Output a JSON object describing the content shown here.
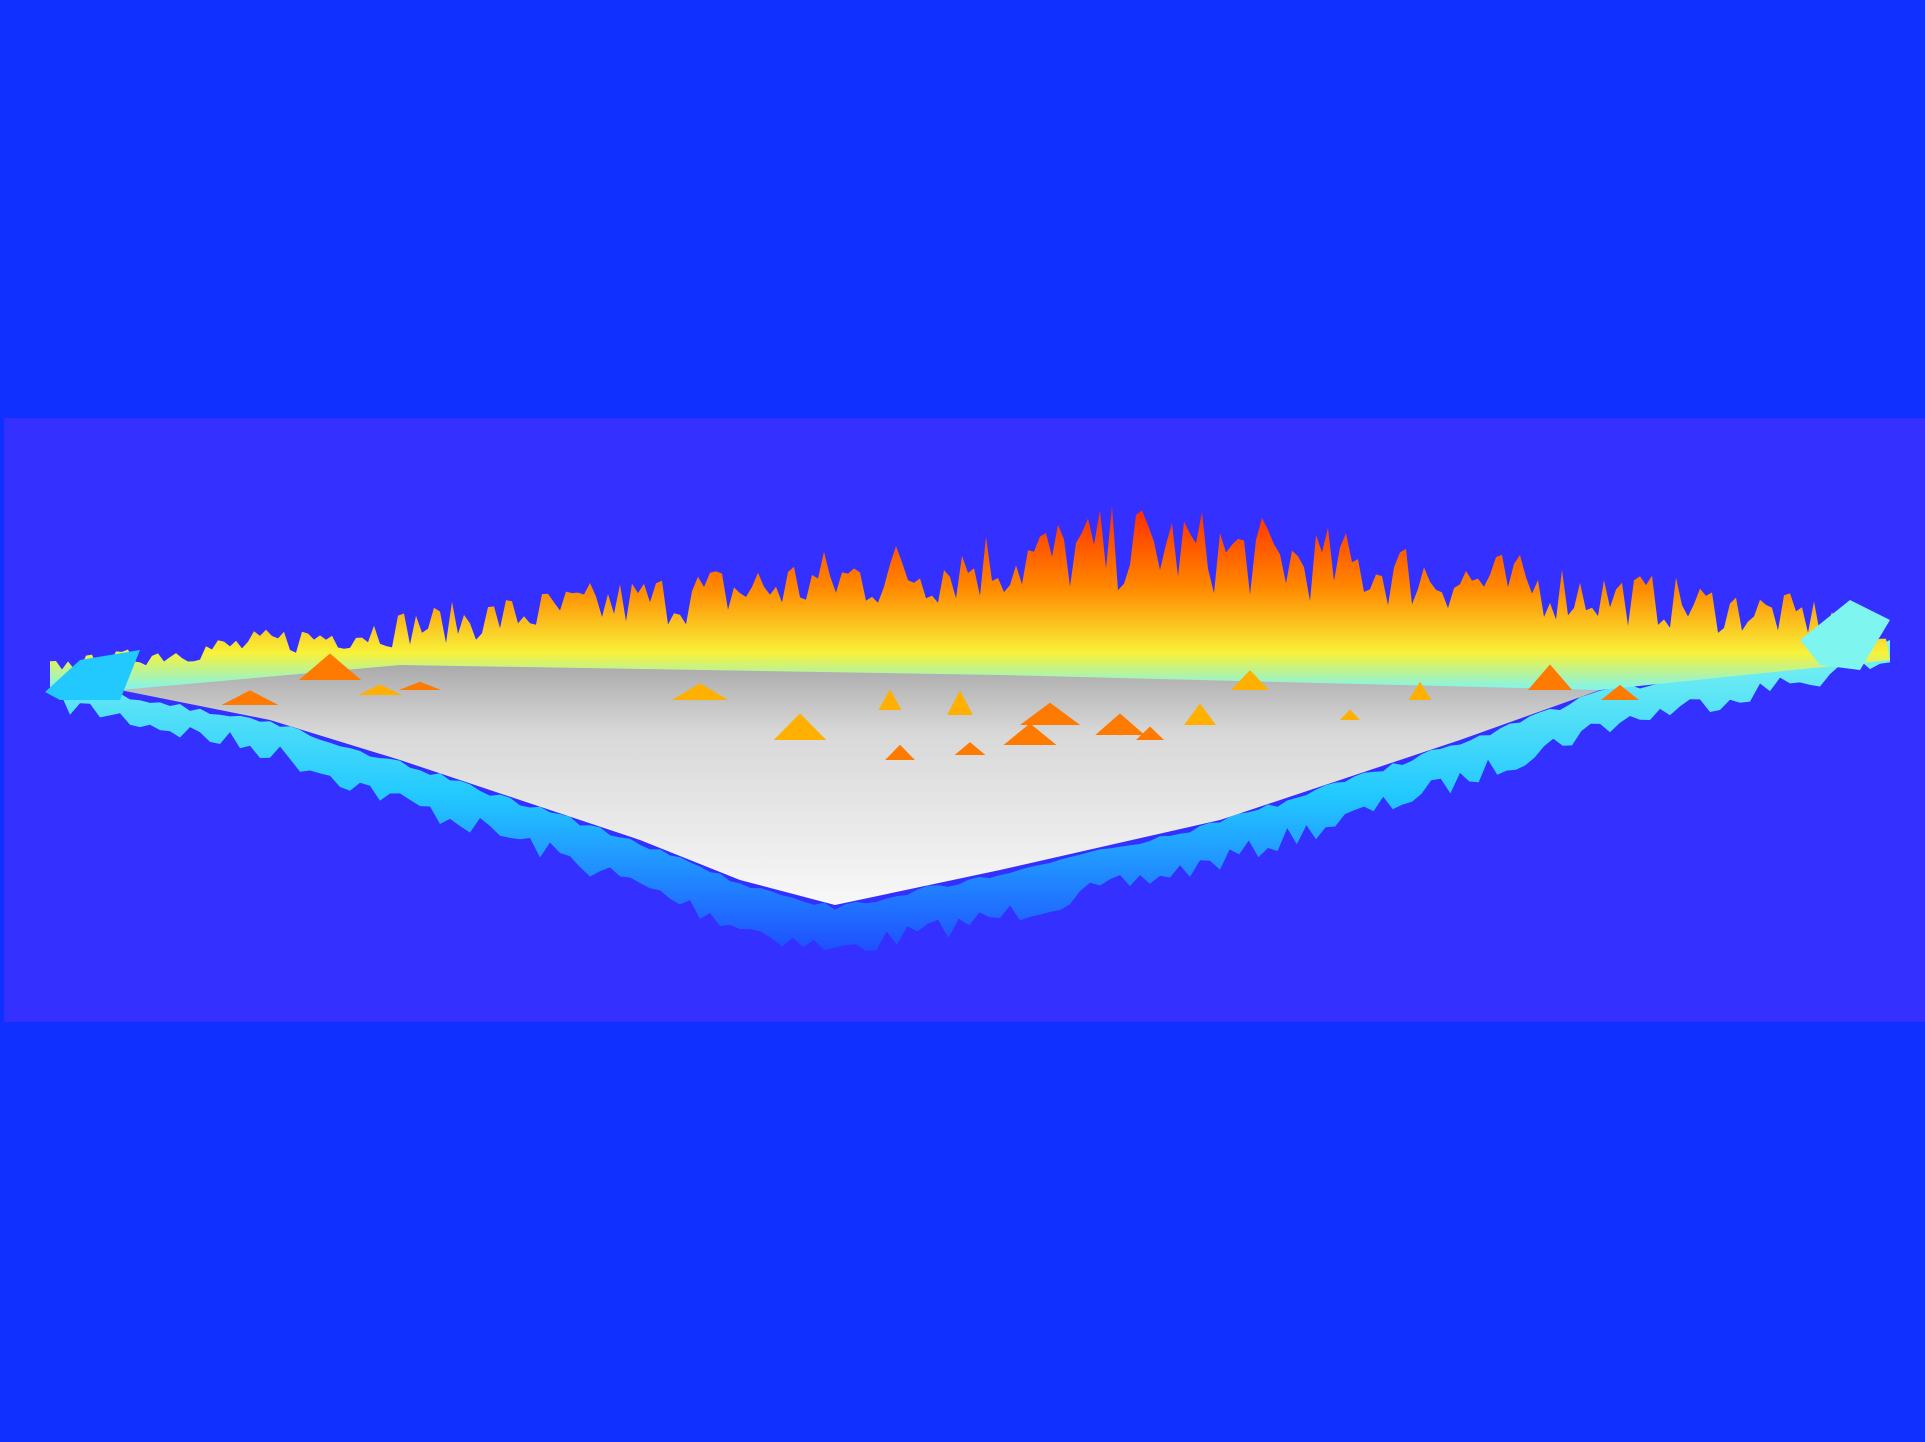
{
  "scene": {
    "kind": "3d-terrain-render",
    "background_color": "#1030ff",
    "band_color": "#3430ff",
    "plane_color": "#f2f2f2",
    "plane_shadow_color": "#8a8a8a",
    "colormap": [
      "#1f4fff",
      "#22c9ff",
      "#7ff5f0",
      "#f8f23a",
      "#ffb000",
      "#ff5a00",
      "#ff2a00"
    ],
    "views": 1
  }
}
